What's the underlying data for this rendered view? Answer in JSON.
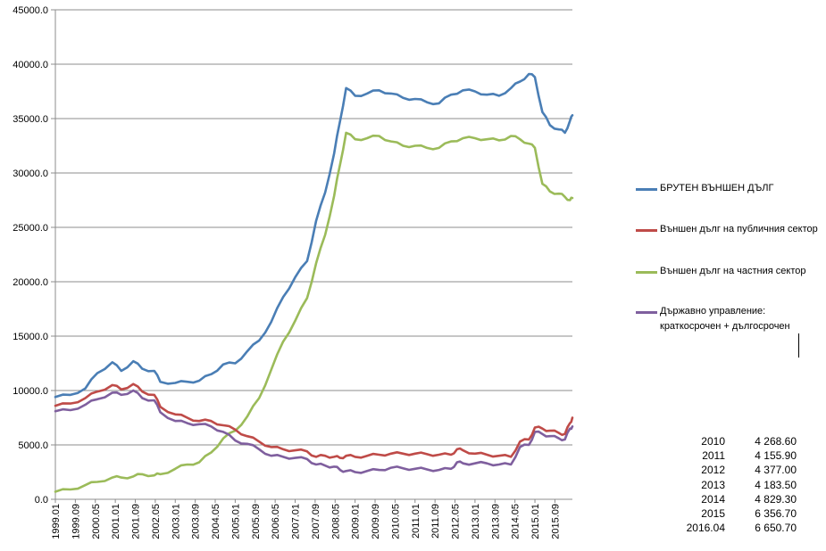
{
  "chart_data": {
    "type": "line",
    "title": "",
    "xlabel": "",
    "ylabel": "",
    "ylim": [
      0,
      45000
    ],
    "yticks": [
      "0.0",
      "5000.0",
      "10000.0",
      "15000.0",
      "20000.0",
      "25000.0",
      "30000.0",
      "35000.0",
      "40000.0",
      "45000.0"
    ],
    "xticks": [
      "1999.01",
      "1999.09",
      "2000.05",
      "2001.01",
      "2001.09",
      "2002.05",
      "2003.01",
      "2003.09",
      "2004.05",
      "2005.01",
      "2005.09",
      "2006.05",
      "2007.01",
      "2007.09",
      "2008.05",
      "2009.01",
      "2009.09",
      "2010.05",
      "2011.01",
      "2011.09",
      "2012.05",
      "2013.01",
      "2013.09",
      "2014.05",
      "2015.01",
      "2015.09"
    ],
    "x_start": "1999.01",
    "x_end": "2016.04",
    "grid": "horizontal",
    "legend_position": "right",
    "series": [
      {
        "name": "БРУТЕН ВЪНШЕН  ДЪЛГ",
        "color": "#4a7eb5",
        "points": [
          [
            1999.0,
            9400
          ],
          [
            1999.5,
            9600
          ],
          [
            2000.0,
            10200
          ],
          [
            2000.4,
            11600
          ],
          [
            2000.9,
            12600
          ],
          [
            2001.2,
            11800
          ],
          [
            2001.6,
            12700
          ],
          [
            2001.9,
            12000
          ],
          [
            2002.3,
            11800
          ],
          [
            2002.5,
            10800
          ],
          [
            2003.0,
            10700
          ],
          [
            2003.4,
            10800
          ],
          [
            2003.8,
            10900
          ],
          [
            2004.2,
            11500
          ],
          [
            2004.6,
            12400
          ],
          [
            2005.0,
            12500
          ],
          [
            2005.4,
            13600
          ],
          [
            2005.8,
            14600
          ],
          [
            2006.2,
            16300
          ],
          [
            2006.6,
            18600
          ],
          [
            2007.0,
            20400
          ],
          [
            2007.4,
            21900
          ],
          [
            2007.7,
            25600
          ],
          [
            2008.0,
            28200
          ],
          [
            2008.3,
            31800
          ],
          [
            2008.5,
            34800
          ],
          [
            2008.7,
            37800
          ],
          [
            2009.0,
            37100
          ],
          [
            2009.4,
            37300
          ],
          [
            2009.8,
            37600
          ],
          [
            2010.2,
            37300
          ],
          [
            2010.6,
            36900
          ],
          [
            2011.0,
            36800
          ],
          [
            2011.4,
            36500
          ],
          [
            2011.8,
            36400
          ],
          [
            2012.2,
            37200
          ],
          [
            2012.6,
            37600
          ],
          [
            2013.0,
            37500
          ],
          [
            2013.4,
            37200
          ],
          [
            2013.8,
            37100
          ],
          [
            2014.2,
            37800
          ],
          [
            2014.5,
            38400
          ],
          [
            2014.8,
            39100
          ],
          [
            2015.0,
            38800
          ],
          [
            2015.25,
            35600
          ],
          [
            2015.5,
            34400
          ],
          [
            2015.8,
            34000
          ],
          [
            2016.0,
            33700
          ],
          [
            2016.17,
            34800
          ],
          [
            2016.25,
            35300
          ]
        ]
      },
      {
        "name": "Външен дълг на публичния сектор",
        "color": "#bf4b48",
        "points": [
          [
            1999.0,
            8600
          ],
          [
            1999.5,
            8800
          ],
          [
            2000.0,
            9300
          ],
          [
            2000.4,
            9900
          ],
          [
            2000.9,
            10500
          ],
          [
            2001.2,
            10100
          ],
          [
            2001.6,
            10600
          ],
          [
            2001.9,
            9900
          ],
          [
            2002.3,
            9600
          ],
          [
            2002.5,
            8500
          ],
          [
            2003.0,
            7800
          ],
          [
            2003.4,
            7500
          ],
          [
            2003.8,
            7200
          ],
          [
            2004.2,
            7200
          ],
          [
            2004.6,
            6800
          ],
          [
            2005.0,
            6400
          ],
          [
            2005.4,
            5800
          ],
          [
            2005.8,
            5300
          ],
          [
            2006.2,
            4800
          ],
          [
            2006.6,
            4600
          ],
          [
            2007.0,
            4500
          ],
          [
            2007.4,
            4400
          ],
          [
            2007.7,
            3900
          ],
          [
            2008.0,
            4000
          ],
          [
            2008.3,
            3900
          ],
          [
            2008.5,
            3800
          ],
          [
            2008.7,
            4000
          ],
          [
            2009.0,
            3900
          ],
          [
            2009.4,
            4000
          ],
          [
            2009.8,
            4100
          ],
          [
            2010.2,
            4200
          ],
          [
            2010.6,
            4200
          ],
          [
            2011.0,
            4200
          ],
          [
            2011.4,
            4150
          ],
          [
            2011.8,
            4100
          ],
          [
            2012.2,
            4100
          ],
          [
            2012.4,
            4600
          ],
          [
            2012.6,
            4500
          ],
          [
            2013.0,
            4200
          ],
          [
            2013.4,
            4100
          ],
          [
            2013.8,
            4000
          ],
          [
            2014.2,
            3900
          ],
          [
            2014.5,
            5300
          ],
          [
            2014.8,
            5500
          ],
          [
            2015.0,
            6600
          ],
          [
            2015.25,
            6500
          ],
          [
            2015.5,
            6300
          ],
          [
            2015.8,
            6100
          ],
          [
            2016.0,
            6000
          ],
          [
            2016.17,
            7000
          ],
          [
            2016.25,
            7500
          ]
        ]
      },
      {
        "name": "Външен дълг на частния сектор",
        "color": "#9bbb59",
        "points": [
          [
            1999.0,
            700
          ],
          [
            1999.5,
            900
          ],
          [
            2000.0,
            1300
          ],
          [
            2000.4,
            1600
          ],
          [
            2000.9,
            2000
          ],
          [
            2001.2,
            2000
          ],
          [
            2001.6,
            2100
          ],
          [
            2001.9,
            2300
          ],
          [
            2002.3,
            2200
          ],
          [
            2002.5,
            2300
          ],
          [
            2003.0,
            2800
          ],
          [
            2003.4,
            3200
          ],
          [
            2003.8,
            3400
          ],
          [
            2004.2,
            4300
          ],
          [
            2004.6,
            5600
          ],
          [
            2005.0,
            6300
          ],
          [
            2005.4,
            7600
          ],
          [
            2005.8,
            9300
          ],
          [
            2006.2,
            11900
          ],
          [
            2006.6,
            14500
          ],
          [
            2007.0,
            16400
          ],
          [
            2007.4,
            18500
          ],
          [
            2007.7,
            21700
          ],
          [
            2008.0,
            24300
          ],
          [
            2008.3,
            27900
          ],
          [
            2008.5,
            30800
          ],
          [
            2008.7,
            33700
          ],
          [
            2009.0,
            33100
          ],
          [
            2009.4,
            33200
          ],
          [
            2009.8,
            33400
          ],
          [
            2010.2,
            32900
          ],
          [
            2010.6,
            32500
          ],
          [
            2011.0,
            32500
          ],
          [
            2011.4,
            32300
          ],
          [
            2011.8,
            32300
          ],
          [
            2012.2,
            32900
          ],
          [
            2012.6,
            33200
          ],
          [
            2013.0,
            33200
          ],
          [
            2013.4,
            33100
          ],
          [
            2013.8,
            33000
          ],
          [
            2014.2,
            33400
          ],
          [
            2014.5,
            33100
          ],
          [
            2014.8,
            32700
          ],
          [
            2015.0,
            32300
          ],
          [
            2015.25,
            29000
          ],
          [
            2015.5,
            28300
          ],
          [
            2015.8,
            28100
          ],
          [
            2016.0,
            27800
          ],
          [
            2016.17,
            27500
          ],
          [
            2016.25,
            27700
          ]
        ]
      },
      {
        "name": "Държавно управление: краткосрочен + дългосрочен",
        "color": "#7f5f9e",
        "points": [
          [
            1999.0,
            8100
          ],
          [
            1999.5,
            8200
          ],
          [
            2000.0,
            8700
          ],
          [
            2000.4,
            9200
          ],
          [
            2000.9,
            9800
          ],
          [
            2001.2,
            9600
          ],
          [
            2001.6,
            10000
          ],
          [
            2001.9,
            9300
          ],
          [
            2002.3,
            9100
          ],
          [
            2002.5,
            8000
          ],
          [
            2003.0,
            7200
          ],
          [
            2003.4,
            7000
          ],
          [
            2003.8,
            6900
          ],
          [
            2004.2,
            6700
          ],
          [
            2004.6,
            6200
          ],
          [
            2005.0,
            5400
          ],
          [
            2005.4,
            5100
          ],
          [
            2005.8,
            4600
          ],
          [
            2006.2,
            4000
          ],
          [
            2006.6,
            3900
          ],
          [
            2007.0,
            3800
          ],
          [
            2007.4,
            3700
          ],
          [
            2007.7,
            3200
          ],
          [
            2008.0,
            3100
          ],
          [
            2008.3,
            3000
          ],
          [
            2008.5,
            2700
          ],
          [
            2008.7,
            2600
          ],
          [
            2009.0,
            2500
          ],
          [
            2009.4,
            2600
          ],
          [
            2009.8,
            2700
          ],
          [
            2010.2,
            2900
          ],
          [
            2010.6,
            2850
          ],
          [
            2011.0,
            2800
          ],
          [
            2011.4,
            2750
          ],
          [
            2011.8,
            2700
          ],
          [
            2012.2,
            2800
          ],
          [
            2012.4,
            3400
          ],
          [
            2012.6,
            3300
          ],
          [
            2013.0,
            3300
          ],
          [
            2013.4,
            3300
          ],
          [
            2013.8,
            3200
          ],
          [
            2014.2,
            3200
          ],
          [
            2014.5,
            4800
          ],
          [
            2014.8,
            5000
          ],
          [
            2015.0,
            6200
          ],
          [
            2015.25,
            6000
          ],
          [
            2015.5,
            5800
          ],
          [
            2015.8,
            5600
          ],
          [
            2016.0,
            5500
          ],
          [
            2016.17,
            6500
          ],
          [
            2016.25,
            6700
          ]
        ]
      }
    ]
  },
  "legend": [
    {
      "label": "БРУТЕН ВЪНШЕН  ДЪЛГ",
      "color": "#4a7eb5"
    },
    {
      "label": "Външен дълг на публичния сектор",
      "color": "#bf4b48"
    },
    {
      "label": "Външен дълг на частния сектор",
      "color": "#9bbb59"
    },
    {
      "label": "Държавно управление: краткосрочен + дългосрочен",
      "color": "#7f5f9e"
    }
  ],
  "table": [
    {
      "year": "2010",
      "value": "4 268.60"
    },
    {
      "year": "2011",
      "value": "4 155.90"
    },
    {
      "year": "2012",
      "value": "4 377.00"
    },
    {
      "year": "2013",
      "value": "4 183.50"
    },
    {
      "year": "2014",
      "value": "4 829.30"
    },
    {
      "year": "2015",
      "value": "6 356.70"
    },
    {
      "year": "2016.04",
      "value": "6 650.70"
    }
  ]
}
